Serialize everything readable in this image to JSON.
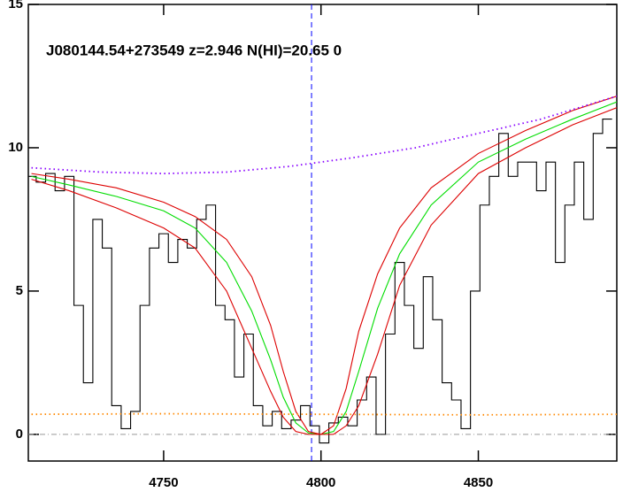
{
  "chart_data": {
    "type": "line",
    "title": "J080144.54+273549 z=2.946 N(HI)=20.65 0",
    "xlim": [
      4707,
      4894
    ],
    "ylim": [
      -0.93,
      15
    ],
    "xticks": [
      4750,
      4800,
      4850
    ],
    "yticks": [
      0,
      5,
      10,
      15
    ],
    "hline": 0,
    "hline_color": "#999999",
    "vline": 4797,
    "vline_color": "#0000ff",
    "series": [
      {
        "color": "#000000",
        "style": "steps",
        "x": [
          4708,
          4711,
          4714,
          4717,
          4720,
          4723,
          4726,
          4729,
          4732,
          4735,
          4738,
          4741,
          4744,
          4747,
          4750,
          4753,
          4756,
          4759,
          4762,
          4765,
          4768,
          4771,
          4774,
          4777,
          4780,
          4783,
          4786,
          4789,
          4792,
          4795,
          4798,
          4801,
          4804,
          4807,
          4810,
          4813,
          4816,
          4819,
          4822,
          4825,
          4828,
          4831,
          4834,
          4837,
          4840,
          4843,
          4846,
          4849,
          4852,
          4855,
          4858,
          4861,
          4864,
          4867,
          4870,
          4873,
          4876,
          4879,
          4882,
          4885,
          4888,
          4891
        ],
        "values": [
          9.0,
          8.8,
          9.1,
          8.5,
          9.0,
          4.5,
          1.8,
          7.5,
          6.5,
          1.0,
          0.2,
          0.8,
          4.5,
          6.5,
          7.0,
          6.0,
          6.8,
          6.5,
          7.5,
          8.0,
          4.5,
          4.0,
          2.0,
          3.5,
          1.0,
          0.3,
          0.8,
          0.2,
          0.5,
          1.0,
          0.3,
          -0.3,
          0.4,
          0.6,
          0.3,
          1.2,
          2.0,
          0.0,
          3.5,
          6.0,
          4.5,
          3.0,
          5.5,
          4.0,
          1.8,
          1.2,
          0.2,
          5.0,
          8.0,
          9.0,
          10.5,
          9.0,
          9.5,
          9.5,
          8.5,
          9.5,
          6.0,
          8.0,
          9.5,
          7.5,
          10.5,
          11.0
        ]
      },
      {
        "color": "#00dd00",
        "style": "solid",
        "x": [
          4708,
          4720,
          4735,
          4750,
          4760,
          4770,
          4778,
          4784,
          4788,
          4792,
          4796,
          4800,
          4804,
          4808,
          4812,
          4818,
          4825,
          4835,
          4850,
          4865,
          4880,
          4894
        ],
        "values": [
          9.0,
          8.7,
          8.3,
          7.8,
          7.2,
          6.0,
          4.3,
          2.6,
          1.3,
          0.4,
          0.05,
          0,
          0.1,
          0.8,
          2.2,
          4.4,
          6.3,
          8.0,
          9.5,
          10.3,
          11.0,
          11.6
        ]
      },
      {
        "color": "#dd0000",
        "style": "solid",
        "x": [
          4708,
          4720,
          4735,
          4750,
          4760,
          4770,
          4778,
          4784,
          4788,
          4792,
          4796,
          4800,
          4804,
          4808,
          4812,
          4818,
          4825,
          4835,
          4850,
          4865,
          4880,
          4894
        ],
        "values": [
          9.1,
          8.9,
          8.6,
          8.1,
          7.6,
          6.8,
          5.5,
          3.8,
          2.2,
          0.8,
          0.1,
          0,
          0.3,
          1.6,
          3.6,
          5.6,
          7.2,
          8.6,
          9.8,
          10.6,
          11.3,
          11.8
        ]
      },
      {
        "color": "#dd0000",
        "style": "solid",
        "x": [
          4708,
          4720,
          4735,
          4750,
          4760,
          4770,
          4778,
          4784,
          4788,
          4792,
          4796,
          4800,
          4804,
          4808,
          4812,
          4818,
          4825,
          4835,
          4850,
          4865,
          4880,
          4894
        ],
        "values": [
          8.9,
          8.5,
          7.9,
          7.2,
          6.5,
          5.0,
          3.0,
          1.5,
          0.6,
          0.1,
          0,
          0,
          0,
          0.3,
          1.0,
          2.8,
          5.2,
          7.3,
          9.1,
          10.0,
          10.8,
          11.4
        ]
      },
      {
        "color": "#8800ff",
        "style": "dotted",
        "x": [
          4708,
          4730,
          4750,
          4770,
          4790,
          4810,
          4830,
          4850,
          4870,
          4894
        ],
        "values": [
          9.3,
          9.15,
          9.1,
          9.15,
          9.35,
          9.65,
          10.0,
          10.5,
          11.0,
          11.8
        ]
      },
      {
        "color": "#ff8800",
        "style": "dotted",
        "x": [
          4708,
          4750,
          4800,
          4850,
          4894
        ],
        "values": [
          0.7,
          0.72,
          0.7,
          0.68,
          0.7
        ]
      }
    ]
  }
}
